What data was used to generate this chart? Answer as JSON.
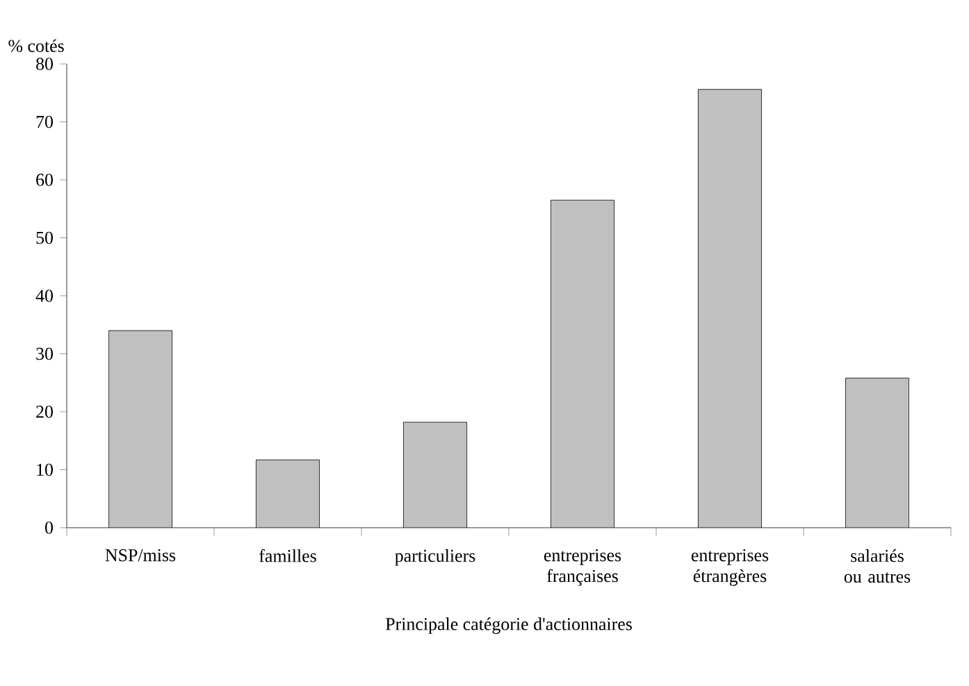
{
  "chart_data": {
    "type": "bar",
    "ylabel": "% cotés",
    "xlabel": "Principale catégorie d'actionnaires",
    "categories": [
      "NSP/miss",
      "familles",
      "particuliers",
      "entreprises françaises",
      "entreprises étrangères",
      "salariés ou autres"
    ],
    "values": [
      34.0,
      11.7,
      18.2,
      56.5,
      75.6,
      25.8
    ],
    "color": "#c0c0c0",
    "ylim": [
      0,
      80
    ],
    "yticks": [
      0,
      10,
      20,
      30,
      40,
      50,
      60,
      70,
      80
    ]
  }
}
